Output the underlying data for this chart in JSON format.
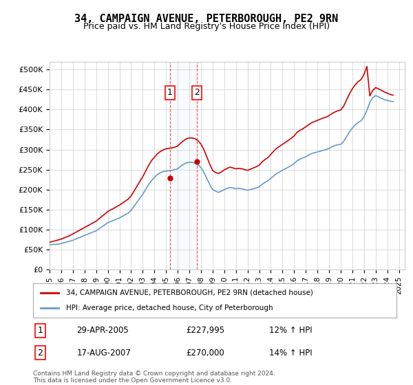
{
  "title": "34, CAMPAIGN AVENUE, PETERBOROUGH, PE2 9RN",
  "subtitle": "Price paid vs. HM Land Registry's House Price Index (HPI)",
  "ylabel_ticks": [
    "£0",
    "£50K",
    "£100K",
    "£150K",
    "£200K",
    "£250K",
    "£300K",
    "£350K",
    "£400K",
    "£450K",
    "£500K"
  ],
  "ytick_values": [
    0,
    50000,
    100000,
    150000,
    200000,
    250000,
    300000,
    350000,
    400000,
    450000,
    500000
  ],
  "ylim": [
    0,
    520000
  ],
  "xlim_start": 1995.0,
  "xlim_end": 2025.5,
  "xtick_years": [
    1995,
    1996,
    1997,
    1998,
    1999,
    2000,
    2001,
    2002,
    2003,
    2004,
    2005,
    2006,
    2007,
    2008,
    2009,
    2010,
    2011,
    2012,
    2013,
    2014,
    2015,
    2016,
    2017,
    2018,
    2019,
    2020,
    2021,
    2022,
    2023,
    2024,
    2025
  ],
  "sale1_date": 2005.32,
  "sale1_price": 227995,
  "sale1_label": "1",
  "sale1_date_str": "29-APR-2005",
  "sale1_price_str": "£227,995",
  "sale1_hpi_str": "12% ↑ HPI",
  "sale2_date": 2007.63,
  "sale2_price": 270000,
  "sale2_label": "2",
  "sale2_date_str": "17-AUG-2007",
  "sale2_price_str": "£270,000",
  "sale2_hpi_str": "14% ↑ HPI",
  "hpi_line_color": "#6699cc",
  "price_line_color": "#cc0000",
  "sale_marker_color": "#cc0000",
  "grid_color": "#cccccc",
  "bg_color": "#ffffff",
  "legend_label_red": "34, CAMPAIGN AVENUE, PETERBOROUGH, PE2 9RN (detached house)",
  "legend_label_blue": "HPI: Average price, detached house, City of Peterborough",
  "footnote": "Contains HM Land Registry data © Crown copyright and database right 2024.\nThis data is licensed under the Open Government Licence v3.0.",
  "hpi_data_x": [
    1995.0,
    1995.25,
    1995.5,
    1995.75,
    1996.0,
    1996.25,
    1996.5,
    1996.75,
    1997.0,
    1997.25,
    1997.5,
    1997.75,
    1998.0,
    1998.25,
    1998.5,
    1998.75,
    1999.0,
    1999.25,
    1999.5,
    1999.75,
    2000.0,
    2000.25,
    2000.5,
    2000.75,
    2001.0,
    2001.25,
    2001.5,
    2001.75,
    2002.0,
    2002.25,
    2002.5,
    2002.75,
    2003.0,
    2003.25,
    2003.5,
    2003.75,
    2004.0,
    2004.25,
    2004.5,
    2004.75,
    2005.0,
    2005.25,
    2005.5,
    2005.75,
    2006.0,
    2006.25,
    2006.5,
    2006.75,
    2007.0,
    2007.25,
    2007.5,
    2007.75,
    2008.0,
    2008.25,
    2008.5,
    2008.75,
    2009.0,
    2009.25,
    2009.5,
    2009.75,
    2010.0,
    2010.25,
    2010.5,
    2010.75,
    2011.0,
    2011.25,
    2011.5,
    2011.75,
    2012.0,
    2012.25,
    2012.5,
    2012.75,
    2013.0,
    2013.25,
    2013.5,
    2013.75,
    2014.0,
    2014.25,
    2014.5,
    2014.75,
    2015.0,
    2015.25,
    2015.5,
    2015.75,
    2016.0,
    2016.25,
    2016.5,
    2016.75,
    2017.0,
    2017.25,
    2017.5,
    2017.75,
    2018.0,
    2018.25,
    2018.5,
    2018.75,
    2019.0,
    2019.25,
    2019.5,
    2019.75,
    2020.0,
    2020.25,
    2020.5,
    2020.75,
    2021.0,
    2021.25,
    2021.5,
    2021.75,
    2022.0,
    2022.25,
    2022.5,
    2022.75,
    2023.0,
    2023.25,
    2023.5,
    2023.75,
    2024.0,
    2024.25,
    2024.5
  ],
  "hpi_data_y": [
    62000,
    62500,
    63000,
    63500,
    65000,
    67000,
    69000,
    71000,
    73000,
    76000,
    79000,
    82000,
    85000,
    88000,
    91000,
    94000,
    97000,
    102000,
    107000,
    112000,
    117000,
    120000,
    123000,
    126000,
    129000,
    133000,
    137000,
    141000,
    148000,
    158000,
    168000,
    178000,
    188000,
    200000,
    212000,
    222000,
    230000,
    237000,
    242000,
    245000,
    246000,
    247000,
    248000,
    250000,
    252000,
    258000,
    263000,
    267000,
    268000,
    268000,
    266000,
    262000,
    255000,
    243000,
    228000,
    213000,
    200000,
    196000,
    193000,
    196000,
    200000,
    203000,
    205000,
    204000,
    202000,
    203000,
    202000,
    200000,
    198000,
    200000,
    202000,
    204000,
    207000,
    213000,
    218000,
    222000,
    228000,
    234000,
    240000,
    244000,
    248000,
    252000,
    256000,
    260000,
    265000,
    272000,
    276000,
    279000,
    282000,
    286000,
    290000,
    292000,
    294000,
    296000,
    298000,
    300000,
    303000,
    307000,
    310000,
    312000,
    313000,
    320000,
    332000,
    344000,
    354000,
    362000,
    368000,
    372000,
    382000,
    398000,
    418000,
    430000,
    435000,
    432000,
    428000,
    425000,
    423000,
    421000,
    420000
  ],
  "price_data_x": [
    1995.0,
    1995.25,
    1995.5,
    1995.75,
    1996.0,
    1996.25,
    1996.5,
    1996.75,
    1997.0,
    1997.25,
    1997.5,
    1997.75,
    1998.0,
    1998.25,
    1998.5,
    1998.75,
    1999.0,
    1999.25,
    1999.5,
    1999.75,
    2000.0,
    2000.25,
    2000.5,
    2000.75,
    2001.0,
    2001.25,
    2001.5,
    2001.75,
    2002.0,
    2002.25,
    2002.5,
    2002.75,
    2003.0,
    2003.25,
    2003.5,
    2003.75,
    2004.0,
    2004.25,
    2004.5,
    2004.75,
    2005.0,
    2005.25,
    2005.5,
    2005.75,
    2006.0,
    2006.25,
    2006.5,
    2006.75,
    2007.0,
    2007.25,
    2007.5,
    2007.75,
    2008.0,
    2008.25,
    2008.5,
    2008.75,
    2009.0,
    2009.25,
    2009.5,
    2009.75,
    2010.0,
    2010.25,
    2010.5,
    2010.75,
    2011.0,
    2011.25,
    2011.5,
    2011.75,
    2012.0,
    2012.25,
    2012.5,
    2012.75,
    2013.0,
    2013.25,
    2013.5,
    2013.75,
    2014.0,
    2014.25,
    2014.5,
    2014.75,
    2015.0,
    2015.25,
    2015.5,
    2015.75,
    2016.0,
    2016.25,
    2016.5,
    2016.75,
    2017.0,
    2017.25,
    2017.5,
    2017.75,
    2018.0,
    2018.25,
    2018.5,
    2018.75,
    2019.0,
    2019.25,
    2019.5,
    2019.75,
    2020.0,
    2020.25,
    2020.5,
    2020.75,
    2021.0,
    2021.25,
    2021.5,
    2021.75,
    2022.0,
    2022.25,
    2022.5,
    2022.75,
    2023.0,
    2023.25,
    2023.5,
    2023.75,
    2024.0,
    2024.25,
    2024.5
  ],
  "price_data_y": [
    68000,
    70000,
    72000,
    74000,
    76000,
    79000,
    82000,
    85000,
    89000,
    93000,
    97000,
    101000,
    105000,
    109000,
    113000,
    117000,
    121000,
    127000,
    133000,
    139000,
    145000,
    149000,
    153000,
    157000,
    161000,
    166000,
    171000,
    176000,
    184000,
    196000,
    208000,
    220000,
    232000,
    246000,
    260000,
    272000,
    281000,
    289000,
    295000,
    299000,
    302000,
    303000,
    304000,
    306000,
    309000,
    316000,
    322000,
    327000,
    329000,
    329000,
    327000,
    322000,
    314000,
    300000,
    282000,
    264000,
    248000,
    243000,
    240000,
    244000,
    249000,
    253000,
    256000,
    254000,
    252000,
    253000,
    252000,
    250000,
    248000,
    251000,
    254000,
    257000,
    261000,
    269000,
    275000,
    280000,
    288000,
    296000,
    303000,
    308000,
    313000,
    318000,
    323000,
    328000,
    334000,
    343000,
    348000,
    352000,
    357000,
    362000,
    367000,
    370000,
    373000,
    376000,
    379000,
    381000,
    385000,
    390000,
    394000,
    397000,
    399000,
    408000,
    424000,
    439000,
    452000,
    462000,
    470000,
    475000,
    488000,
    508000,
    434000,
    448000,
    455000,
    452000,
    448000,
    444000,
    441000,
    438000,
    436000
  ]
}
